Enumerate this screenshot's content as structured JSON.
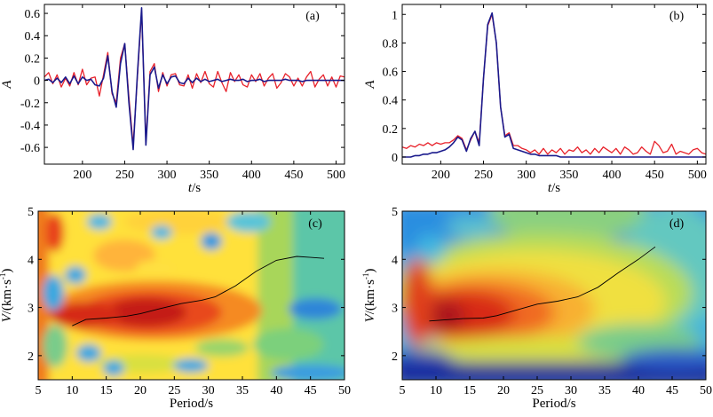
{
  "chart_data": [
    {
      "panel": "(a)",
      "type": "line",
      "xlabel_main": "t",
      "xlabel_unit": "/s",
      "ylabel": "A",
      "xlim": [
        155,
        510
      ],
      "ylim": [
        -0.75,
        0.68
      ],
      "x_ticks": [
        200,
        250,
        300,
        350,
        400,
        450,
        500
      ],
      "y_ticks": [
        -0.6,
        -0.4,
        -0.2,
        0,
        0.2,
        0.4,
        0.6
      ],
      "y_tick_labels": [
        "-0.6",
        "-0.4",
        "-0.2",
        "0",
        "0.2",
        "0.4",
        "0.6"
      ],
      "grid": false,
      "series": [
        {
          "color": "#e8222b",
          "x": [
            155,
            160,
            165,
            170,
            175,
            180,
            185,
            190,
            195,
            200,
            205,
            210,
            215,
            220,
            225,
            230,
            235,
            240,
            245,
            250,
            255,
            260,
            265,
            270,
            275,
            280,
            285,
            290,
            295,
            300,
            305,
            310,
            315,
            320,
            325,
            330,
            335,
            340,
            345,
            350,
            355,
            360,
            365,
            370,
            375,
            380,
            385,
            390,
            395,
            400,
            405,
            410,
            415,
            420,
            425,
            430,
            435,
            440,
            445,
            450,
            455,
            460,
            465,
            470,
            475,
            480,
            485,
            490,
            495,
            500,
            505,
            510
          ],
          "y": [
            0.03,
            0.07,
            -0.03,
            0.05,
            -0.06,
            0.02,
            -0.05,
            0.07,
            -0.04,
            0.1,
            -0.04,
            0.02,
            0.03,
            -0.14,
            0.05,
            0.25,
            -0.12,
            -0.2,
            0.2,
            0.33,
            -0.15,
            -0.58,
            0.02,
            0.62,
            -0.55,
            0.08,
            0.15,
            -0.1,
            0.07,
            -0.05,
            0.05,
            0.06,
            -0.04,
            -0.05,
            0.05,
            -0.07,
            0.06,
            -0.02,
            0.08,
            -0.03,
            -0.06,
            0.08,
            -0.02,
            -0.1,
            0.07,
            -0.01,
            0.05,
            -0.04,
            -0.06,
            0.05,
            -0.01,
            0.06,
            -0.05,
            0.02,
            0.06,
            -0.07,
            -0.02,
            0.06,
            0.03,
            -0.05,
            0.02,
            -0.05,
            0.03,
            0.08,
            -0.06,
            0.01,
            0.05,
            -0.05,
            0.03,
            -0.06,
            0.04,
            0.03
          ]
        },
        {
          "color": "#1a1a8c",
          "x": [
            155,
            160,
            165,
            170,
            175,
            180,
            185,
            190,
            195,
            200,
            205,
            210,
            215,
            220,
            225,
            230,
            235,
            240,
            245,
            250,
            255,
            260,
            265,
            270,
            275,
            280,
            285,
            290,
            295,
            300,
            305,
            310,
            315,
            320,
            325,
            330,
            335,
            340,
            345,
            350,
            355,
            360,
            365,
            370,
            375,
            380,
            385,
            390,
            395,
            400,
            405,
            410,
            415,
            420,
            425,
            430,
            435,
            440,
            445,
            450,
            455,
            460,
            465,
            470,
            475,
            480,
            485,
            490,
            495,
            500,
            505,
            510
          ],
          "y": [
            0.0,
            0.01,
            -0.02,
            0.02,
            -0.02,
            0.03,
            -0.03,
            0.04,
            -0.03,
            0.03,
            0.0,
            0.01,
            -0.04,
            -0.05,
            0.02,
            0.22,
            -0.1,
            -0.24,
            0.15,
            0.33,
            -0.2,
            -0.62,
            0.05,
            0.65,
            -0.58,
            0.05,
            0.12,
            -0.07,
            0.05,
            -0.03,
            0.03,
            0.04,
            -0.02,
            -0.03,
            0.02,
            -0.02,
            0.02,
            -0.01,
            0.01,
            -0.01,
            0.0,
            0.01,
            -0.01,
            0.0,
            0.01,
            0.0,
            0.0,
            0.01,
            -0.01,
            0.0,
            0.0,
            0.01,
            -0.01,
            0.0,
            0.0,
            0.0,
            0.0,
            0.01,
            0.0,
            0.0,
            0.0,
            -0.01,
            0.0,
            0.0,
            0.0,
            0.0,
            0.0,
            0.0,
            0.0,
            0.0,
            0.0,
            0.0
          ]
        }
      ]
    },
    {
      "panel": "(b)",
      "type": "line",
      "xlabel_main": "t",
      "xlabel_unit": "/s",
      "ylabel": "A",
      "xlim": [
        155,
        510
      ],
      "ylim": [
        -0.05,
        1.07
      ],
      "x_ticks": [
        200,
        250,
        300,
        350,
        400,
        450,
        500
      ],
      "y_ticks": [
        0,
        0.2,
        0.4,
        0.6,
        0.8,
        1
      ],
      "y_tick_labels": [
        "0",
        "0.2",
        "0.4",
        "0.6",
        "0.8",
        "1"
      ],
      "grid": false,
      "series": [
        {
          "color": "#e8222b",
          "x": [
            155,
            160,
            165,
            170,
            175,
            180,
            185,
            190,
            195,
            200,
            205,
            210,
            215,
            220,
            225,
            230,
            235,
            240,
            245,
            250,
            255,
            260,
            265,
            270,
            275,
            280,
            285,
            290,
            295,
            300,
            305,
            310,
            315,
            320,
            325,
            330,
            335,
            340,
            345,
            350,
            355,
            360,
            365,
            370,
            375,
            380,
            385,
            390,
            395,
            400,
            405,
            410,
            415,
            420,
            425,
            430,
            435,
            440,
            445,
            450,
            455,
            460,
            465,
            470,
            475,
            480,
            485,
            490,
            495,
            500,
            505,
            510
          ],
          "y": [
            0.07,
            0.06,
            0.08,
            0.07,
            0.09,
            0.08,
            0.1,
            0.08,
            0.1,
            0.09,
            0.1,
            0.1,
            0.12,
            0.15,
            0.13,
            0.05,
            0.12,
            0.18,
            0.1,
            0.55,
            0.92,
            1.0,
            0.8,
            0.35,
            0.15,
            0.17,
            0.08,
            0.08,
            0.06,
            0.05,
            0.03,
            0.05,
            0.02,
            0.06,
            0.02,
            0.05,
            0.03,
            0.06,
            0.02,
            0.05,
            0.04,
            0.07,
            0.03,
            0.05,
            0.02,
            0.06,
            0.03,
            0.07,
            0.05,
            0.03,
            0.06,
            0.02,
            0.07,
            0.05,
            0.02,
            0.03,
            0.07,
            0.04,
            0.02,
            0.11,
            0.08,
            0.03,
            0.04,
            0.09,
            0.02,
            0.04,
            0.03,
            0.02,
            0.05,
            0.06,
            0.03,
            0.02
          ]
        },
        {
          "color": "#1a1a8c",
          "x": [
            155,
            160,
            165,
            170,
            175,
            180,
            185,
            190,
            195,
            200,
            205,
            210,
            215,
            220,
            225,
            230,
            235,
            240,
            245,
            250,
            255,
            260,
            265,
            270,
            275,
            280,
            285,
            290,
            295,
            300,
            305,
            310,
            315,
            320,
            325,
            330,
            335,
            340,
            345,
            350,
            355,
            360,
            365,
            370,
            375,
            380,
            385,
            390,
            395,
            400,
            405,
            410,
            415,
            420,
            425,
            430,
            435,
            440,
            445,
            450,
            455,
            460,
            465,
            470,
            475,
            480,
            485,
            490,
            495,
            500,
            505,
            510
          ],
          "y": [
            0.0,
            0.0,
            0.0,
            0.01,
            0.01,
            0.02,
            0.02,
            0.03,
            0.03,
            0.04,
            0.05,
            0.07,
            0.1,
            0.14,
            0.12,
            0.04,
            0.13,
            0.18,
            0.08,
            0.55,
            0.93,
            1.01,
            0.8,
            0.35,
            0.14,
            0.16,
            0.06,
            0.05,
            0.04,
            0.03,
            0.02,
            0.02,
            0.01,
            0.01,
            0.01,
            0.01,
            0.01,
            0.0,
            0.0,
            0.0,
            0.0,
            0.0,
            0.0,
            0.0,
            0.0,
            0.0,
            0.0,
            0.0,
            0.0,
            0.0,
            0.0,
            0.0,
            0.0,
            0.0,
            0.0,
            0.0,
            0.0,
            0.0,
            0.0,
            0.0,
            0.0,
            0.0,
            0.0,
            0.0,
            0.0,
            0.0,
            0.0,
            0.0,
            0.0,
            0.0,
            0.0,
            0.0
          ]
        }
      ]
    },
    {
      "panel": "(c)",
      "type": "heatmap",
      "xlabel": "Period/s",
      "ylabel_main": "V",
      "ylabel_unit": "/(km·s",
      "ylabel_sup": "-1",
      "ylabel_close": ")",
      "xlim": [
        5,
        50
      ],
      "ylim": [
        1.5,
        5
      ],
      "x_ticks": [
        5,
        10,
        15,
        20,
        25,
        30,
        35,
        40,
        45,
        50
      ],
      "y_ticks": [
        2,
        3,
        4,
        5
      ],
      "colormap": "jet",
      "dispersion_curve": {
        "color": "#000000",
        "x": [
          10,
          12,
          15,
          18,
          20,
          23,
          26,
          29,
          31,
          34,
          37,
          40,
          43,
          45,
          47
        ],
        "y": [
          2.62,
          2.75,
          2.78,
          2.82,
          2.87,
          2.98,
          3.08,
          3.15,
          3.22,
          3.45,
          3.75,
          3.98,
          4.06,
          4.04,
          4.02
        ]
      }
    },
    {
      "panel": "(d)",
      "type": "heatmap",
      "xlabel": "Period/s",
      "ylabel_main": "V",
      "ylabel_unit": "/(km·s",
      "ylabel_sup": "-1",
      "ylabel_close": ")",
      "xlim": [
        5,
        50
      ],
      "ylim": [
        1.5,
        5
      ],
      "x_ticks": [
        5,
        10,
        15,
        20,
        25,
        30,
        35,
        40,
        45,
        50
      ],
      "y_ticks": [
        2,
        3,
        4,
        5
      ],
      "colormap": "jet",
      "dispersion_curve": {
        "color": "#000000",
        "x": [
          9,
          11,
          14,
          17,
          19,
          22,
          25,
          28,
          31,
          34,
          37,
          40,
          42.5
        ],
        "y": [
          2.72,
          2.74,
          2.77,
          2.78,
          2.83,
          2.95,
          3.07,
          3.13,
          3.22,
          3.42,
          3.72,
          4.0,
          4.26
        ]
      }
    }
  ]
}
